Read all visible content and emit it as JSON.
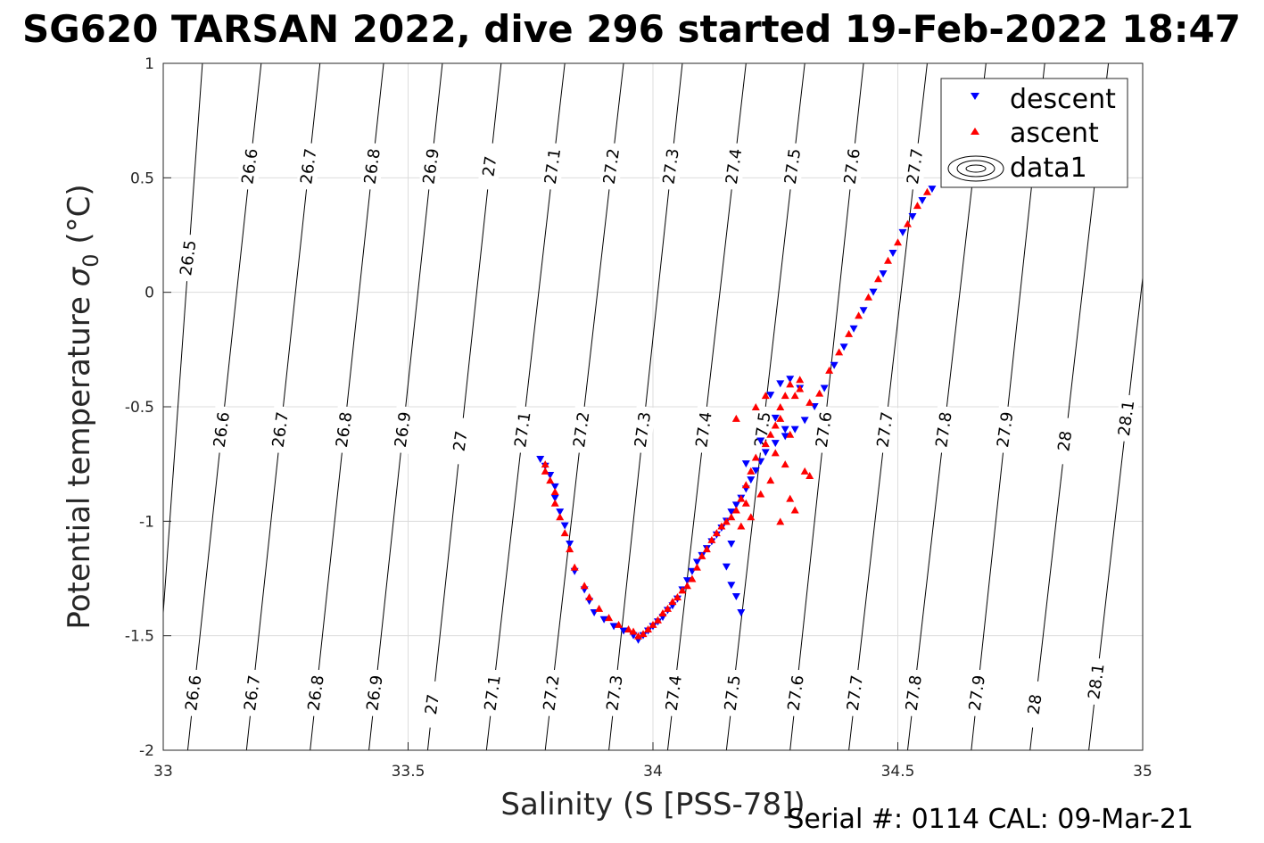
{
  "chart_data": {
    "type": "scatter",
    "title": "SG620 TARSAN 2022, dive 296 started 19-Feb-2022 18:47",
    "xlabel": "Salinity (S [PSS-78])",
    "ylabel_main": "Potential temperature ",
    "ylabel_sigma": "σ",
    "ylabel_sub": "0",
    "ylabel_unit": " (°C)",
    "xlim": [
      33,
      35
    ],
    "ylim": [
      -2,
      1
    ],
    "xticks": [
      "33",
      "33.5",
      "34",
      "34.5",
      "35"
    ],
    "yticks": [
      "-2",
      "-1.5",
      "-1",
      "-0.5",
      "0",
      "0.5",
      "1"
    ],
    "grid": true,
    "legend": {
      "placement": "top-right",
      "entries": [
        "descent",
        "ascent",
        "data1"
      ]
    },
    "colors": {
      "descent": "#0000ff",
      "ascent": "#ff0000",
      "contour": "#000000",
      "grid": "#dcdcdc"
    },
    "footer": "Serial #: 0114  CAL: 09-Mar-21",
    "density_contours": [
      {
        "level": "26.5",
        "x_bottom": 32.98,
        "x_top": 33.08
      },
      {
        "level": "26.6",
        "x_bottom": 33.05,
        "x_top": 33.2
      },
      {
        "level": "26.7",
        "x_bottom": 33.17,
        "x_top": 33.32
      },
      {
        "level": "26.8",
        "x_bottom": 33.3,
        "x_top": 33.45
      },
      {
        "level": "26.9",
        "x_bottom": 33.42,
        "x_top": 33.57
      },
      {
        "level": "27",
        "x_bottom": 33.54,
        "x_top": 33.69
      },
      {
        "level": "27.1",
        "x_bottom": 33.66,
        "x_top": 33.82
      },
      {
        "level": "27.2",
        "x_bottom": 33.78,
        "x_top": 33.94
      },
      {
        "level": "27.3",
        "x_bottom": 33.91,
        "x_top": 34.06
      },
      {
        "level": "27.4",
        "x_bottom": 34.03,
        "x_top": 34.19
      },
      {
        "level": "27.5",
        "x_bottom": 34.15,
        "x_top": 34.31
      },
      {
        "level": "27.6",
        "x_bottom": 34.28,
        "x_top": 34.43
      },
      {
        "level": "27.7",
        "x_bottom": 34.4,
        "x_top": 34.56
      },
      {
        "level": "27.8",
        "x_bottom": 34.52,
        "x_top": 34.68
      },
      {
        "level": "27.9",
        "x_bottom": 34.65,
        "x_top": 34.8
      },
      {
        "level": "28",
        "x_bottom": 34.77,
        "x_top": 34.93
      },
      {
        "level": "28.1",
        "x_bottom": 34.89,
        "x_top": 35.05
      }
    ],
    "contour_labels_upper": [
      {
        "level": "26.5",
        "y": 0.15
      },
      {
        "level": "26.6",
        "y": 0.55
      },
      {
        "level": "26.7",
        "y": 0.55
      },
      {
        "level": "26.8",
        "y": 0.55
      },
      {
        "level": "26.9",
        "y": 0.55
      },
      {
        "level": "27",
        "y": 0.55
      },
      {
        "level": "27.1",
        "y": 0.55
      },
      {
        "level": "27.2",
        "y": 0.55
      },
      {
        "level": "27.3",
        "y": 0.55
      },
      {
        "level": "27.4",
        "y": 0.55
      },
      {
        "level": "27.5",
        "y": 0.55
      },
      {
        "level": "27.6",
        "y": 0.55
      },
      {
        "level": "27.7",
        "y": 0.55
      }
    ],
    "contour_labels_middle": [
      {
        "level": "26.6",
        "y": -0.6
      },
      {
        "level": "26.7",
        "y": -0.6
      },
      {
        "level": "26.8",
        "y": -0.6
      },
      {
        "level": "26.9",
        "y": -0.6
      },
      {
        "level": "27",
        "y": -0.65
      },
      {
        "level": "27.1",
        "y": -0.6
      },
      {
        "level": "27.2",
        "y": -0.6
      },
      {
        "level": "27.3",
        "y": -0.6
      },
      {
        "level": "27.4",
        "y": -0.6
      },
      {
        "level": "27.5",
        "y": -0.6
      },
      {
        "level": "27.6",
        "y": -0.6
      },
      {
        "level": "27.7",
        "y": -0.6
      },
      {
        "level": "27.8",
        "y": -0.6
      },
      {
        "level": "27.9",
        "y": -0.6
      },
      {
        "level": "28",
        "y": -0.65
      },
      {
        "level": "28.1",
        "y": -0.55
      }
    ],
    "contour_labels_lower": [
      {
        "level": "26.6",
        "y": -1.75
      },
      {
        "level": "26.7",
        "y": -1.75
      },
      {
        "level": "26.8",
        "y": -1.75
      },
      {
        "level": "26.9",
        "y": -1.75
      },
      {
        "level": "27",
        "y": -1.8
      },
      {
        "level": "27.1",
        "y": -1.75
      },
      {
        "level": "27.2",
        "y": -1.75
      },
      {
        "level": "27.3",
        "y": -1.75
      },
      {
        "level": "27.4",
        "y": -1.75
      },
      {
        "level": "27.5",
        "y": -1.75
      },
      {
        "level": "27.6",
        "y": -1.75
      },
      {
        "level": "27.7",
        "y": -1.75
      },
      {
        "level": "27.8",
        "y": -1.75
      },
      {
        "level": "27.9",
        "y": -1.75
      },
      {
        "level": "28",
        "y": -1.8
      },
      {
        "level": "28.1",
        "y": -1.7
      }
    ],
    "series": [
      {
        "name": "descent",
        "marker": "triangle-down",
        "x": [
          34.57,
          34.55,
          34.53,
          34.51,
          34.49,
          34.47,
          34.45,
          34.43,
          34.41,
          34.39,
          34.37,
          34.35,
          34.33,
          34.31,
          34.29,
          34.27,
          34.25,
          34.23,
          34.22,
          34.21,
          34.2,
          34.19,
          34.18,
          34.17,
          34.16,
          34.15,
          34.14,
          34.13,
          34.12,
          34.11,
          34.1,
          34.09,
          34.08,
          34.07,
          34.06,
          34.05,
          34.04,
          34.03,
          34.02,
          34.01,
          34.0,
          33.99,
          33.98,
          33.97,
          33.96,
          33.94,
          33.92,
          33.9,
          33.88,
          33.87,
          33.86,
          33.84,
          33.83,
          33.82,
          33.81,
          33.8,
          33.8,
          33.79,
          33.78,
          33.77,
          34.16,
          34.17,
          34.18,
          34.15,
          34.16,
          34.19,
          34.24,
          34.26,
          34.28,
          34.3,
          34.22,
          34.25,
          34.27
        ],
        "y": [
          0.45,
          0.4,
          0.33,
          0.26,
          0.17,
          0.08,
          0.0,
          -0.08,
          -0.16,
          -0.24,
          -0.32,
          -0.42,
          -0.5,
          -0.56,
          -0.6,
          -0.63,
          -0.66,
          -0.7,
          -0.74,
          -0.78,
          -0.82,
          -0.86,
          -0.9,
          -0.93,
          -0.96,
          -1.0,
          -1.03,
          -1.06,
          -1.09,
          -1.12,
          -1.15,
          -1.18,
          -1.22,
          -1.26,
          -1.3,
          -1.34,
          -1.37,
          -1.39,
          -1.42,
          -1.44,
          -1.46,
          -1.48,
          -1.5,
          -1.52,
          -1.5,
          -1.48,
          -1.46,
          -1.43,
          -1.4,
          -1.35,
          -1.3,
          -1.22,
          -1.1,
          -1.02,
          -0.96,
          -0.9,
          -0.85,
          -0.8,
          -0.76,
          -0.73,
          -1.28,
          -1.33,
          -1.4,
          -1.2,
          -1.1,
          -0.75,
          -0.45,
          -0.4,
          -0.38,
          -0.42,
          -0.65,
          -0.55,
          -0.6
        ]
      },
      {
        "name": "ascent",
        "marker": "triangle-up",
        "x": [
          34.56,
          34.54,
          34.52,
          34.5,
          34.48,
          34.46,
          34.44,
          34.42,
          34.4,
          34.38,
          34.36,
          34.34,
          34.32,
          34.3,
          34.28,
          34.27,
          34.26,
          34.25,
          34.24,
          34.23,
          34.21,
          34.2,
          34.19,
          34.18,
          34.17,
          34.16,
          34.15,
          34.14,
          34.13,
          34.12,
          34.11,
          34.1,
          34.09,
          34.08,
          34.07,
          34.06,
          34.05,
          34.04,
          34.03,
          34.02,
          34.01,
          34.0,
          33.99,
          33.98,
          33.97,
          33.96,
          33.95,
          33.93,
          33.91,
          33.89,
          33.87,
          33.86,
          33.84,
          33.83,
          33.82,
          33.81,
          33.8,
          33.8,
          33.79,
          33.78,
          33.78,
          34.3,
          34.29,
          34.31,
          34.26,
          34.28,
          34.22,
          34.24,
          34.19,
          34.2,
          34.18,
          34.25,
          34.27,
          34.21,
          34.23,
          34.17,
          34.28,
          34.29,
          34.32,
          34.26
        ],
        "y": [
          0.44,
          0.38,
          0.3,
          0.22,
          0.14,
          0.06,
          -0.02,
          -0.1,
          -0.18,
          -0.26,
          -0.34,
          -0.44,
          -0.48,
          -0.42,
          -0.4,
          -0.45,
          -0.5,
          -0.58,
          -0.62,
          -0.66,
          -0.72,
          -0.78,
          -0.84,
          -0.9,
          -0.95,
          -0.98,
          -1.0,
          -1.02,
          -1.05,
          -1.08,
          -1.12,
          -1.15,
          -1.2,
          -1.25,
          -1.28,
          -1.3,
          -1.33,
          -1.35,
          -1.38,
          -1.4,
          -1.43,
          -1.45,
          -1.47,
          -1.49,
          -1.5,
          -1.48,
          -1.47,
          -1.45,
          -1.42,
          -1.38,
          -1.33,
          -1.28,
          -1.2,
          -1.12,
          -1.05,
          -0.98,
          -0.92,
          -0.87,
          -0.82,
          -0.78,
          -0.75,
          -0.38,
          -0.45,
          -0.78,
          -0.55,
          -0.62,
          -0.88,
          -0.82,
          -0.92,
          -0.98,
          -1.02,
          -0.7,
          -0.75,
          -0.5,
          -0.45,
          -0.55,
          -0.9,
          -0.95,
          -0.8,
          -1.0
        ]
      }
    ]
  }
}
